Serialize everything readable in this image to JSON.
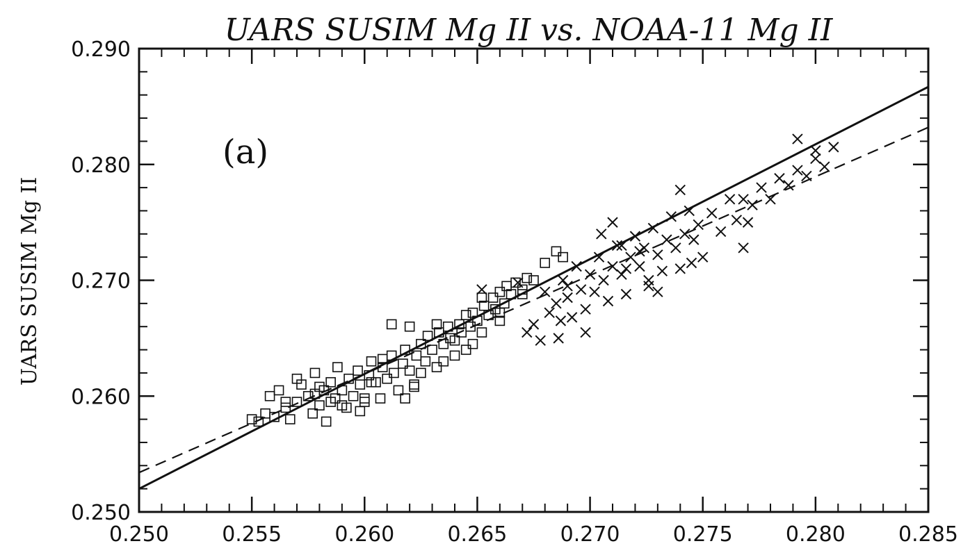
{
  "chart_data": {
    "type": "scatter",
    "title": "UARS SUSIM Mg II vs. NOAA-11 Mg II",
    "xlabel": "",
    "ylabel": "UARS SUSIM Mg II",
    "panel_label": "(a)",
    "xlim": [
      0.25,
      0.285
    ],
    "ylim": [
      0.25,
      0.29
    ],
    "x_ticks": [
      "0.250",
      "0.255",
      "0.260",
      "0.265",
      "0.270",
      "0.275",
      "0.280",
      "0.285"
    ],
    "y_ticks": [
      "0.250",
      "0.260",
      "0.270",
      "0.280",
      "0.290"
    ],
    "grid": false,
    "series": [
      {
        "marker": "square",
        "points": [
          [
            0.255,
            0.258
          ],
          [
            0.2553,
            0.2578
          ],
          [
            0.2556,
            0.2585
          ],
          [
            0.2558,
            0.26
          ],
          [
            0.256,
            0.2582
          ],
          [
            0.2562,
            0.2605
          ],
          [
            0.2565,
            0.259
          ],
          [
            0.2567,
            0.258
          ],
          [
            0.257,
            0.2595
          ],
          [
            0.2572,
            0.261
          ],
          [
            0.2575,
            0.26
          ],
          [
            0.2577,
            0.2585
          ],
          [
            0.2578,
            0.262
          ],
          [
            0.258,
            0.2592
          ],
          [
            0.2582,
            0.2605
          ],
          [
            0.2583,
            0.2578
          ],
          [
            0.2585,
            0.2612
          ],
          [
            0.2587,
            0.2598
          ],
          [
            0.2588,
            0.2625
          ],
          [
            0.259,
            0.2605
          ],
          [
            0.2592,
            0.259
          ],
          [
            0.2593,
            0.2615
          ],
          [
            0.2595,
            0.26
          ],
          [
            0.2597,
            0.2622
          ],
          [
            0.2598,
            0.261
          ],
          [
            0.26,
            0.2595
          ],
          [
            0.2602,
            0.2618
          ],
          [
            0.2603,
            0.263
          ],
          [
            0.2605,
            0.2612
          ],
          [
            0.2607,
            0.2598
          ],
          [
            0.2608,
            0.2625
          ],
          [
            0.261,
            0.2615
          ],
          [
            0.2612,
            0.2635
          ],
          [
            0.2613,
            0.262
          ],
          [
            0.2615,
            0.2605
          ],
          [
            0.2617,
            0.2628
          ],
          [
            0.2618,
            0.264
          ],
          [
            0.262,
            0.2622
          ],
          [
            0.2622,
            0.261
          ],
          [
            0.2623,
            0.2635
          ],
          [
            0.2625,
            0.2645
          ],
          [
            0.2627,
            0.263
          ],
          [
            0.2628,
            0.2652
          ],
          [
            0.263,
            0.264
          ],
          [
            0.2632,
            0.2625
          ],
          [
            0.2633,
            0.2655
          ],
          [
            0.2635,
            0.2645
          ],
          [
            0.2637,
            0.266
          ],
          [
            0.2638,
            0.265
          ],
          [
            0.264,
            0.2635
          ],
          [
            0.2642,
            0.2662
          ],
          [
            0.2643,
            0.2655
          ],
          [
            0.2645,
            0.267
          ],
          [
            0.2647,
            0.266
          ],
          [
            0.2648,
            0.2672
          ],
          [
            0.265,
            0.2665
          ],
          [
            0.2652,
            0.2655
          ],
          [
            0.2653,
            0.2678
          ],
          [
            0.2655,
            0.267
          ],
          [
            0.2657,
            0.2685
          ],
          [
            0.2658,
            0.2675
          ],
          [
            0.266,
            0.269
          ],
          [
            0.2662,
            0.268
          ],
          [
            0.2663,
            0.2695
          ],
          [
            0.2665,
            0.2688
          ],
          [
            0.2667,
            0.2698
          ],
          [
            0.267,
            0.2692
          ],
          [
            0.2672,
            0.2702
          ],
          [
            0.2675,
            0.27
          ],
          [
            0.268,
            0.2715
          ],
          [
            0.2685,
            0.2725
          ],
          [
            0.2688,
            0.272
          ],
          [
            0.2612,
            0.2662
          ],
          [
            0.2622,
            0.2608
          ],
          [
            0.2635,
            0.263
          ],
          [
            0.259,
            0.2592
          ],
          [
            0.258,
            0.2608
          ],
          [
            0.257,
            0.2615
          ],
          [
            0.2565,
            0.2595
          ],
          [
            0.26,
            0.2598
          ],
          [
            0.262,
            0.266
          ],
          [
            0.2625,
            0.262
          ],
          [
            0.2648,
            0.2645
          ],
          [
            0.2645,
            0.264
          ],
          [
            0.2603,
            0.2612
          ],
          [
            0.2598,
            0.2587
          ],
          [
            0.2618,
            0.2598
          ],
          [
            0.264,
            0.2648
          ],
          [
            0.2652,
            0.2685
          ],
          [
            0.266,
            0.2672
          ],
          [
            0.2578,
            0.2602
          ],
          [
            0.2585,
            0.2595
          ],
          [
            0.2608,
            0.2632
          ],
          [
            0.2632,
            0.2662
          ],
          [
            0.266,
            0.2665
          ],
          [
            0.267,
            0.2688
          ]
        ]
      },
      {
        "marker": "x",
        "points": [
          [
            0.2652,
            0.2692
          ],
          [
            0.2668,
            0.2698
          ],
          [
            0.2672,
            0.2655
          ],
          [
            0.2675,
            0.2662
          ],
          [
            0.2678,
            0.2648
          ],
          [
            0.268,
            0.269
          ],
          [
            0.2682,
            0.2672
          ],
          [
            0.2685,
            0.268
          ],
          [
            0.2687,
            0.2665
          ],
          [
            0.2688,
            0.27
          ],
          [
            0.269,
            0.2685
          ],
          [
            0.2692,
            0.2668
          ],
          [
            0.2694,
            0.2712
          ],
          [
            0.2696,
            0.2692
          ],
          [
            0.2698,
            0.2675
          ],
          [
            0.27,
            0.2705
          ],
          [
            0.2702,
            0.269
          ],
          [
            0.2704,
            0.272
          ],
          [
            0.2706,
            0.27
          ],
          [
            0.2708,
            0.2682
          ],
          [
            0.271,
            0.2712
          ],
          [
            0.2712,
            0.273
          ],
          [
            0.2714,
            0.2705
          ],
          [
            0.2716,
            0.2688
          ],
          [
            0.2718,
            0.272
          ],
          [
            0.272,
            0.2738
          ],
          [
            0.2722,
            0.2712
          ],
          [
            0.2724,
            0.2728
          ],
          [
            0.2726,
            0.2695
          ],
          [
            0.2728,
            0.2745
          ],
          [
            0.273,
            0.2722
          ],
          [
            0.2732,
            0.2708
          ],
          [
            0.2734,
            0.2735
          ],
          [
            0.2736,
            0.2755
          ],
          [
            0.2738,
            0.2728
          ],
          [
            0.274,
            0.271
          ],
          [
            0.2742,
            0.274
          ],
          [
            0.2744,
            0.276
          ],
          [
            0.2746,
            0.2735
          ],
          [
            0.2748,
            0.2748
          ],
          [
            0.275,
            0.272
          ],
          [
            0.2754,
            0.2758
          ],
          [
            0.2758,
            0.2742
          ],
          [
            0.2762,
            0.277
          ],
          [
            0.2765,
            0.2752
          ],
          [
            0.2768,
            0.2728
          ],
          [
            0.2772,
            0.2765
          ],
          [
            0.2776,
            0.278
          ],
          [
            0.278,
            0.277
          ],
          [
            0.2784,
            0.2788
          ],
          [
            0.2788,
            0.2782
          ],
          [
            0.2792,
            0.2795
          ],
          [
            0.2796,
            0.279
          ],
          [
            0.28,
            0.2805
          ],
          [
            0.2804,
            0.2798
          ],
          [
            0.2808,
            0.2815
          ],
          [
            0.2792,
            0.2822
          ],
          [
            0.28,
            0.2812
          ],
          [
            0.274,
            0.2778
          ],
          [
            0.271,
            0.275
          ],
          [
            0.2705,
            0.274
          ],
          [
            0.2722,
            0.2725
          ],
          [
            0.2698,
            0.2655
          ],
          [
            0.269,
            0.2695
          ],
          [
            0.2714,
            0.273
          ],
          [
            0.2768,
            0.277
          ],
          [
            0.277,
            0.275
          ],
          [
            0.273,
            0.269
          ],
          [
            0.2745,
            0.2715
          ],
          [
            0.2686,
            0.265
          ],
          [
            0.2716,
            0.271
          ],
          [
            0.2726,
            0.27
          ]
        ]
      }
    ],
    "fit_lines": [
      {
        "style": "solid",
        "x": [
          0.25,
          0.285
        ],
        "y": [
          0.252,
          0.2867
        ]
      },
      {
        "style": "dashed",
        "x": [
          0.25,
          0.285
        ],
        "y": [
          0.2534,
          0.2832
        ]
      }
    ]
  }
}
